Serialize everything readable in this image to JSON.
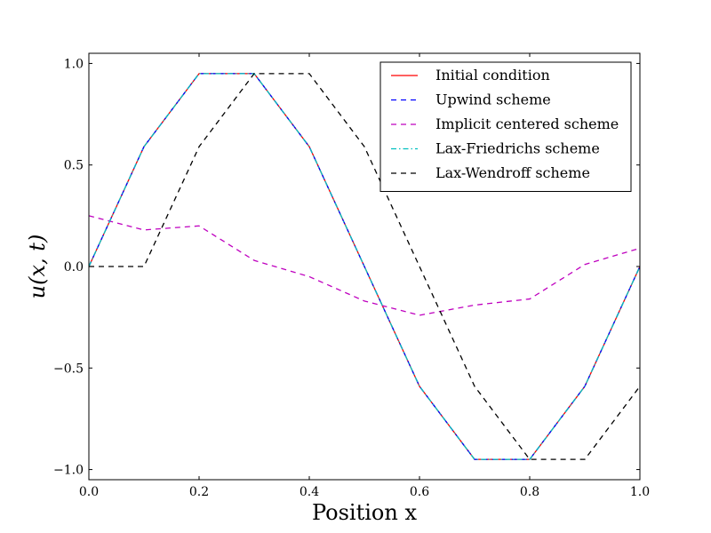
{
  "chart_data": {
    "type": "line",
    "xlabel": "Position x",
    "ylabel": "u(x, t)",
    "xlim": [
      0.0,
      1.0
    ],
    "ylim": [
      -1.05,
      1.05
    ],
    "grid": false,
    "legend_placement": "top-right",
    "x_ticks": [
      "0.0",
      "0.2",
      "0.4",
      "0.6",
      "0.8",
      "1.0"
    ],
    "y_ticks": [
      "1.0",
      "0.5",
      "0.0",
      "−0.5",
      "−1.0"
    ],
    "x": [
      0.0,
      0.1,
      0.2,
      0.3,
      0.4,
      0.5,
      0.6,
      0.7,
      0.8,
      0.9,
      1.0
    ],
    "series": [
      {
        "name": "Initial condition",
        "color": "#ff0000",
        "dash": "solid",
        "values": [
          0.0,
          0.59,
          0.95,
          0.95,
          0.59,
          0.0,
          -0.59,
          -0.95,
          -0.95,
          -0.59,
          0.0
        ]
      },
      {
        "name": "Upwind scheme",
        "color": "#0000ff",
        "dash": "dashed",
        "values": [
          0.0,
          0.59,
          0.95,
          0.95,
          0.59,
          0.0,
          -0.59,
          -0.95,
          -0.95,
          -0.59,
          0.0
        ]
      },
      {
        "name": "Implicit centered scheme",
        "color": "#bf00bf",
        "dash": "dashed",
        "values": [
          0.25,
          0.18,
          0.2,
          0.03,
          -0.05,
          -0.17,
          -0.24,
          -0.19,
          -0.16,
          0.01,
          0.09
        ]
      },
      {
        "name": "Lax-Friedrichs scheme",
        "color": "#00bfbf",
        "dash": "dashdot",
        "values": [
          0.0,
          0.59,
          0.95,
          0.95,
          0.59,
          0.0,
          -0.59,
          -0.95,
          -0.95,
          -0.59,
          0.0
        ]
      },
      {
        "name": "Lax-Wendroff scheme",
        "color": "#000000",
        "dash": "dashed",
        "values": [
          0.0,
          0.0,
          0.59,
          0.95,
          0.95,
          0.59,
          0.0,
          -0.59,
          -0.95,
          -0.95,
          -0.59
        ]
      }
    ]
  }
}
